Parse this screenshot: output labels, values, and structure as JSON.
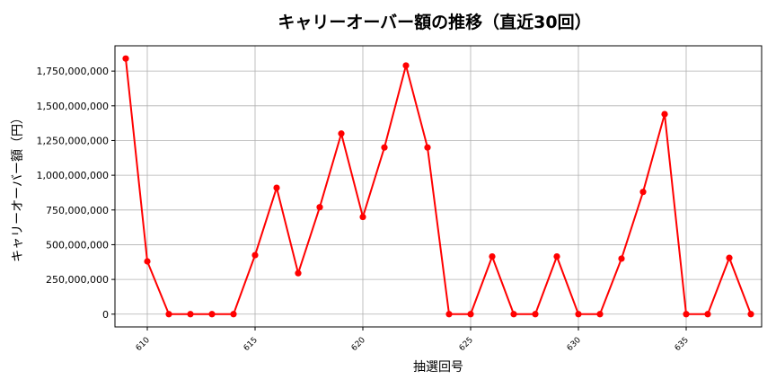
{
  "chart_data": {
    "type": "line",
    "title": "キャリーオーバー額の推移（直近30回）",
    "xlabel": "抽選回号",
    "ylabel": "キャリーオーバー額（円）",
    "x": [
      609,
      610,
      611,
      612,
      613,
      614,
      615,
      616,
      617,
      618,
      619,
      620,
      621,
      622,
      623,
      624,
      625,
      626,
      627,
      628,
      629,
      630,
      631,
      632,
      633,
      634,
      635,
      636,
      637,
      638
    ],
    "series": [
      {
        "name": "",
        "color": "#ff0000",
        "values": [
          1840000000,
          380000000,
          0,
          0,
          0,
          0,
          425000000,
          910000000,
          295000000,
          770000000,
          1300000000,
          700000000,
          1200000000,
          1790000000,
          1200000000,
          0,
          0,
          415000000,
          0,
          0,
          415000000,
          0,
          0,
          400000000,
          880000000,
          1440000000,
          0,
          0,
          405000000,
          0
        ]
      }
    ],
    "xticks": [
      610,
      615,
      620,
      625,
      630,
      635
    ],
    "xtick_labels": [
      "610",
      "615",
      "620",
      "625",
      "630",
      "635"
    ],
    "yticks": [
      0,
      250000000,
      500000000,
      750000000,
      1000000000,
      1250000000,
      1500000000,
      1750000000
    ],
    "ytick_labels": [
      "0",
      "250,000,000",
      "500,000,000",
      "750,000,000",
      "1,000,000,000",
      "1,250,000,000",
      "1,500,000,000",
      "1,750,000,000"
    ],
    "xlim": [
      608.5,
      638.5
    ],
    "ylim": [
      -92000000,
      1932000000
    ],
    "grid": true,
    "legend": "none"
  }
}
